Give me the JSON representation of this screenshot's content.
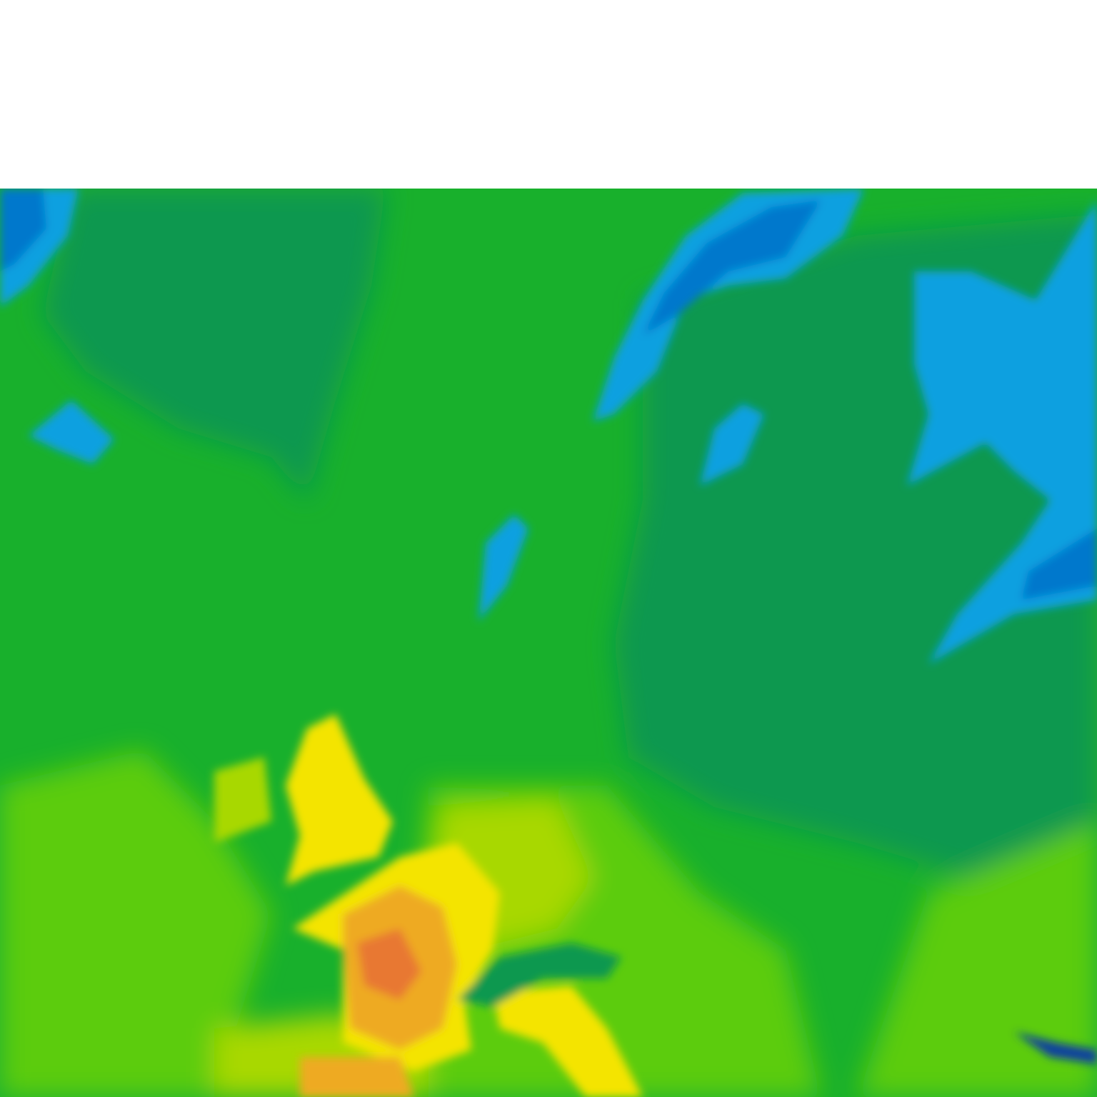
{
  "map": {
    "kind": "temperature field",
    "region": "Europe",
    "palette": {
      "base_green": "#18b02c",
      "dark_green": "#0f9850",
      "teal_green": "#12a040",
      "light_green": "#5ccc10",
      "yellow_green": "#a8d800",
      "yellow": "#f4e400",
      "orange": "#eeaa20",
      "red_orange": "#e87830",
      "sky_blue": "#0aa0e0",
      "deep_blue": "#0578cc",
      "navy": "#1040a0"
    }
  }
}
